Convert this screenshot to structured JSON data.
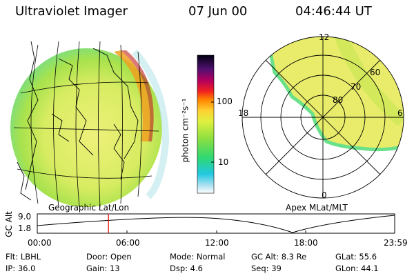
{
  "header": {
    "instrument": "Ultraviolet Imager",
    "date": "07 Jun 00",
    "time": "04:46:44 UT"
  },
  "colorbar": {
    "label": "photon cm⁻²s⁻¹",
    "tick_100": "100",
    "tick_10": "10"
  },
  "left_panel": {
    "caption": "Geographic Lat/Lon"
  },
  "right_panel": {
    "caption": "Apex  MLat/MLT",
    "mlt_labels": {
      "top": "12",
      "left": "18",
      "right": "6",
      "bottom": "0"
    },
    "lat_labels": [
      "80",
      "70",
      "60"
    ]
  },
  "altitude_plot": {
    "ylabel": "GC Alt",
    "ytick_top": "9.0",
    "ytick_bottom": "1.8",
    "xticks": [
      "00:00",
      "06:00",
      "12:00",
      "18:00",
      "23:59"
    ],
    "marker_time_hours": 4.78,
    "marker_color": "#e00000"
  },
  "status": {
    "flt": "Flt: LBHL",
    "ip": "IP: 36.0",
    "door": "Door: Open",
    "gain": "Gain: 13",
    "mode": "Mode: Normal",
    "dsp": "Dsp:     4.6",
    "gcalt": "GC Alt: 8.3 Re",
    "seq": "Seq: 39",
    "glat": "GLat:  55.6",
    "glon": "GLon:  44.1"
  },
  "colors": {
    "aurora_bright": "#e9ec6a",
    "aurora_mid": "#b8e64a",
    "aurora_low": "#69e08a"
  }
}
